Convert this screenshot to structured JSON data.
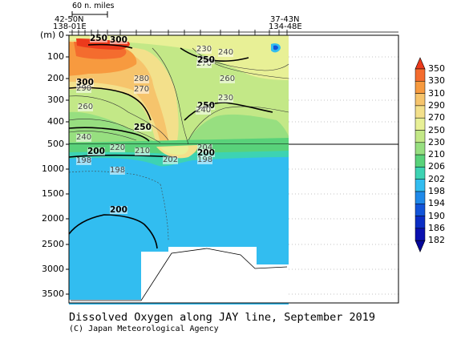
{
  "chart_data": {
    "type": "heatmap",
    "title": "Dissolved Oxygen along JAY line, September 2019",
    "credit": "(C) Japan Meteorological Agency",
    "ylabel": "(m)",
    "scale_label": "60 n. miles",
    "stations": {
      "left": {
        "lat": "42-50N",
        "lon": "138-01E"
      },
      "right": {
        "lat": "37-43N",
        "lon": "134-48E"
      }
    },
    "y_ticks_upper": [
      "0",
      "100",
      "200",
      "300",
      "400",
      "500"
    ],
    "y_ticks_lower": [
      "1000",
      "1500",
      "2000",
      "2500",
      "3000",
      "3500"
    ],
    "colorbar": {
      "labels": [
        "350",
        "330",
        "310",
        "290",
        "270",
        "250",
        "230",
        "210",
        "206",
        "202",
        "198",
        "194",
        "190",
        "186",
        "182"
      ],
      "colors": [
        "#ec3a1c",
        "#f46c2e",
        "#f79a3f",
        "#f6c46c",
        "#f3e08b",
        "#e8f096",
        "#c3e887",
        "#97df80",
        "#59d27a",
        "#3dd3b3",
        "#32bdf0",
        "#1f89e9",
        "#1254d9",
        "#0b2dc4",
        "#0a10b0",
        "#05069a"
      ]
    },
    "contour_labels": [
      {
        "text": "250",
        "depth": "upper"
      },
      {
        "text": "300",
        "depth": "upper"
      },
      {
        "text": "230",
        "depth": "upper"
      },
      {
        "text": "240",
        "depth": "upper"
      },
      {
        "text": "270",
        "depth": "upper"
      },
      {
        "text": "250",
        "depth": "upper"
      },
      {
        "text": "260",
        "depth": "upper"
      },
      {
        "text": "300",
        "depth": "upper"
      },
      {
        "text": "290",
        "depth": "upper"
      },
      {
        "text": "280",
        "depth": "upper"
      },
      {
        "text": "270",
        "depth": "upper"
      },
      {
        "text": "260",
        "depth": "upper"
      },
      {
        "text": "250",
        "depth": "upper"
      },
      {
        "text": "240",
        "depth": "upper"
      },
      {
        "text": "230",
        "depth": "upper"
      },
      {
        "text": "250",
        "depth": "upper"
      },
      {
        "text": "240",
        "depth": "upper"
      },
      {
        "text": "200",
        "depth": "lower"
      },
      {
        "text": "220",
        "depth": "lower"
      },
      {
        "text": "210",
        "depth": "lower"
      },
      {
        "text": "204",
        "depth": "lower"
      },
      {
        "text": "200",
        "depth": "lower"
      },
      {
        "text": "198",
        "depth": "lower"
      },
      {
        "text": "202",
        "depth": "lower"
      },
      {
        "text": "198",
        "depth": "lower"
      },
      {
        "text": "198",
        "depth": "lower"
      },
      {
        "text": "200",
        "depth": "lower"
      }
    ]
  }
}
